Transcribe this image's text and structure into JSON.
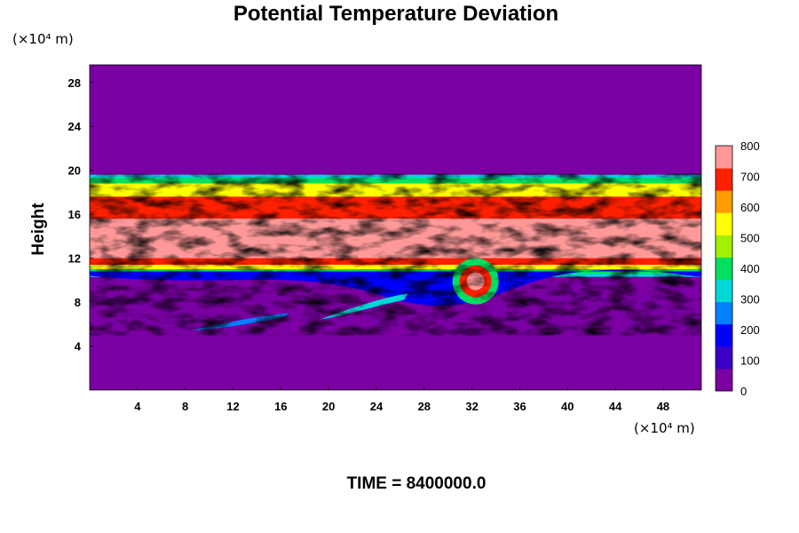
{
  "chart_data": {
    "type": "heatmap",
    "title": "Potential Temperature Deviation",
    "ylabel": "Height",
    "x_unit": "(×10⁴ m)",
    "y_unit": "(×10⁴ m)",
    "x_ticks": [
      4,
      8,
      12,
      16,
      20,
      24,
      28,
      32,
      36,
      40,
      44,
      48
    ],
    "y_ticks": [
      4,
      8,
      12,
      16,
      20,
      24,
      28
    ],
    "xlim": [
      0,
      51.2
    ],
    "ylim": [
      0,
      29.6
    ],
    "footer": "TIME = 8400000.0",
    "colorbar": {
      "ticks": [
        0,
        100,
        200,
        300,
        400,
        500,
        600,
        700,
        800
      ],
      "range": [
        0,
        800
      ],
      "colors": [
        "#7a00a3",
        "#3a00c8",
        "#0000ff",
        "#0080ff",
        "#00d8d8",
        "#00e060",
        "#a0f000",
        "#ffff00",
        "#ff9c00",
        "#ff2000",
        "#ff9999"
      ]
    },
    "layers": [
      {
        "name": "background",
        "value": 0,
        "color": "#7a00a3"
      },
      {
        "name": "upper-stratified-band",
        "y_range": [
          10.5,
          19.5
        ],
        "color": "#00e060"
      },
      {
        "name": "core-band",
        "y_range": [
          12,
          15.5
        ],
        "color": "#ff9999"
      }
    ]
  }
}
